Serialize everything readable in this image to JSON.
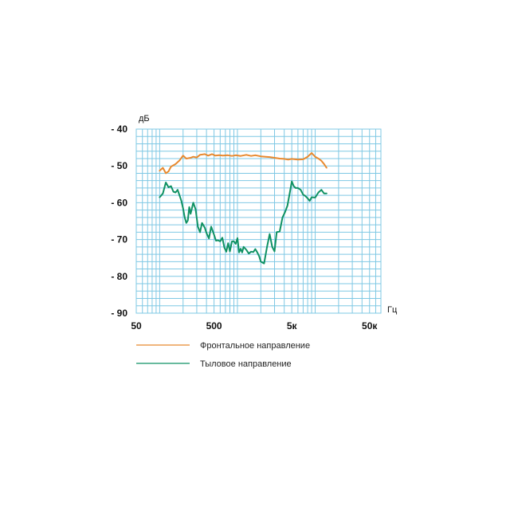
{
  "chart_data": {
    "type": "line",
    "ylabel": "дБ",
    "xlabel": "Гц",
    "x_scale": "log",
    "xlim": [
      50,
      70000
    ],
    "ylim": [
      -90,
      -40
    ],
    "x_tick_labels": [
      "50",
      "500",
      "5к",
      "50к"
    ],
    "x_tick_values": [
      50,
      500,
      5000,
      50000
    ],
    "y_tick_labels": [
      "- 40",
      "- 50",
      "- 60",
      "- 70",
      "- 80",
      "- 90"
    ],
    "y_tick_values": [
      -40,
      -50,
      -60,
      -70,
      -80,
      -90
    ],
    "grid": true,
    "legend_position": "bottom-left",
    "series": [
      {
        "name": "Фронтальное направление",
        "color": "#e8892e",
        "x": [
          100,
          110,
          120,
          130,
          140,
          160,
          180,
          200,
          220,
          250,
          270,
          300,
          330,
          380,
          420,
          470,
          520,
          580,
          650,
          750,
          850,
          950,
          1100,
          1300,
          1500,
          1700,
          2000,
          2300,
          2600,
          3000,
          3500,
          4000,
          4500,
          5000,
          5500,
          6000,
          7000,
          8000,
          9000,
          10000,
          11000,
          12000,
          13000,
          14000
        ],
        "y": [
          -51.3,
          -50.5,
          -52,
          -51.5,
          -50.2,
          -49.5,
          -48.5,
          -47.2,
          -48,
          -47.8,
          -47.5,
          -47.7,
          -47,
          -46.8,
          -47.2,
          -46.8,
          -47.2,
          -47.1,
          -47.2,
          -47.1,
          -47.3,
          -47.1,
          -47.3,
          -47,
          -47.3,
          -47.1,
          -47.4,
          -47.5,
          -47.6,
          -47.8,
          -48,
          -48.1,
          -48.3,
          -48.1,
          -48.2,
          -48.3,
          -48.2,
          -47.5,
          -46.5,
          -47.5,
          -48,
          -48.6,
          -49.5,
          -50.5
        ]
      },
      {
        "name": "Тыловое направление",
        "color": "#0f9163",
        "x": [
          100,
          110,
          120,
          130,
          140,
          150,
          160,
          170,
          180,
          190,
          200,
          210,
          220,
          230,
          240,
          250,
          270,
          290,
          310,
          330,
          350,
          380,
          400,
          430,
          460,
          500,
          530,
          560,
          600,
          640,
          680,
          720,
          760,
          800,
          850,
          900,
          950,
          1000,
          1050,
          1100,
          1150,
          1200,
          1300,
          1400,
          1500,
          1600,
          1700,
          1800,
          1900,
          2000,
          2200,
          2400,
          2600,
          2800,
          3000,
          3200,
          3500,
          3800,
          4100,
          4400,
          4700,
          5000,
          5300,
          5600,
          6000,
          6500,
          7000,
          7500,
          8000,
          8500,
          9000,
          10000,
          11000,
          12000,
          13000,
          14000
        ],
        "y": [
          -58.5,
          -57.5,
          -54.5,
          -55.8,
          -55.5,
          -57,
          -57.2,
          -56.5,
          -58,
          -59.5,
          -61.5,
          -64,
          -65.5,
          -64.8,
          -61.2,
          -63,
          -60,
          -61.8,
          -66.5,
          -68,
          -65.5,
          -66.8,
          -68.2,
          -69.7,
          -66.5,
          -68.7,
          -70.3,
          -70.2,
          -70.5,
          -69.5,
          -72.2,
          -73.3,
          -71,
          -73.2,
          -70.5,
          -70.5,
          -71.2,
          -69.6,
          -73.5,
          -72.5,
          -73.5,
          -72,
          -72.8,
          -73.8,
          -73.3,
          -73.4,
          -72.6,
          -73.5,
          -74.5,
          -76,
          -76.5,
          -72,
          -68.5,
          -72,
          -73.2,
          -68,
          -67.8,
          -64,
          -62.5,
          -60.8,
          -57.5,
          -54.2,
          -55.5,
          -56,
          -56,
          -56.5,
          -57.8,
          -58.2,
          -58.8,
          -59.5,
          -58.5,
          -58.6,
          -57.2,
          -56.5,
          -57.5,
          -57.5
        ]
      }
    ]
  }
}
